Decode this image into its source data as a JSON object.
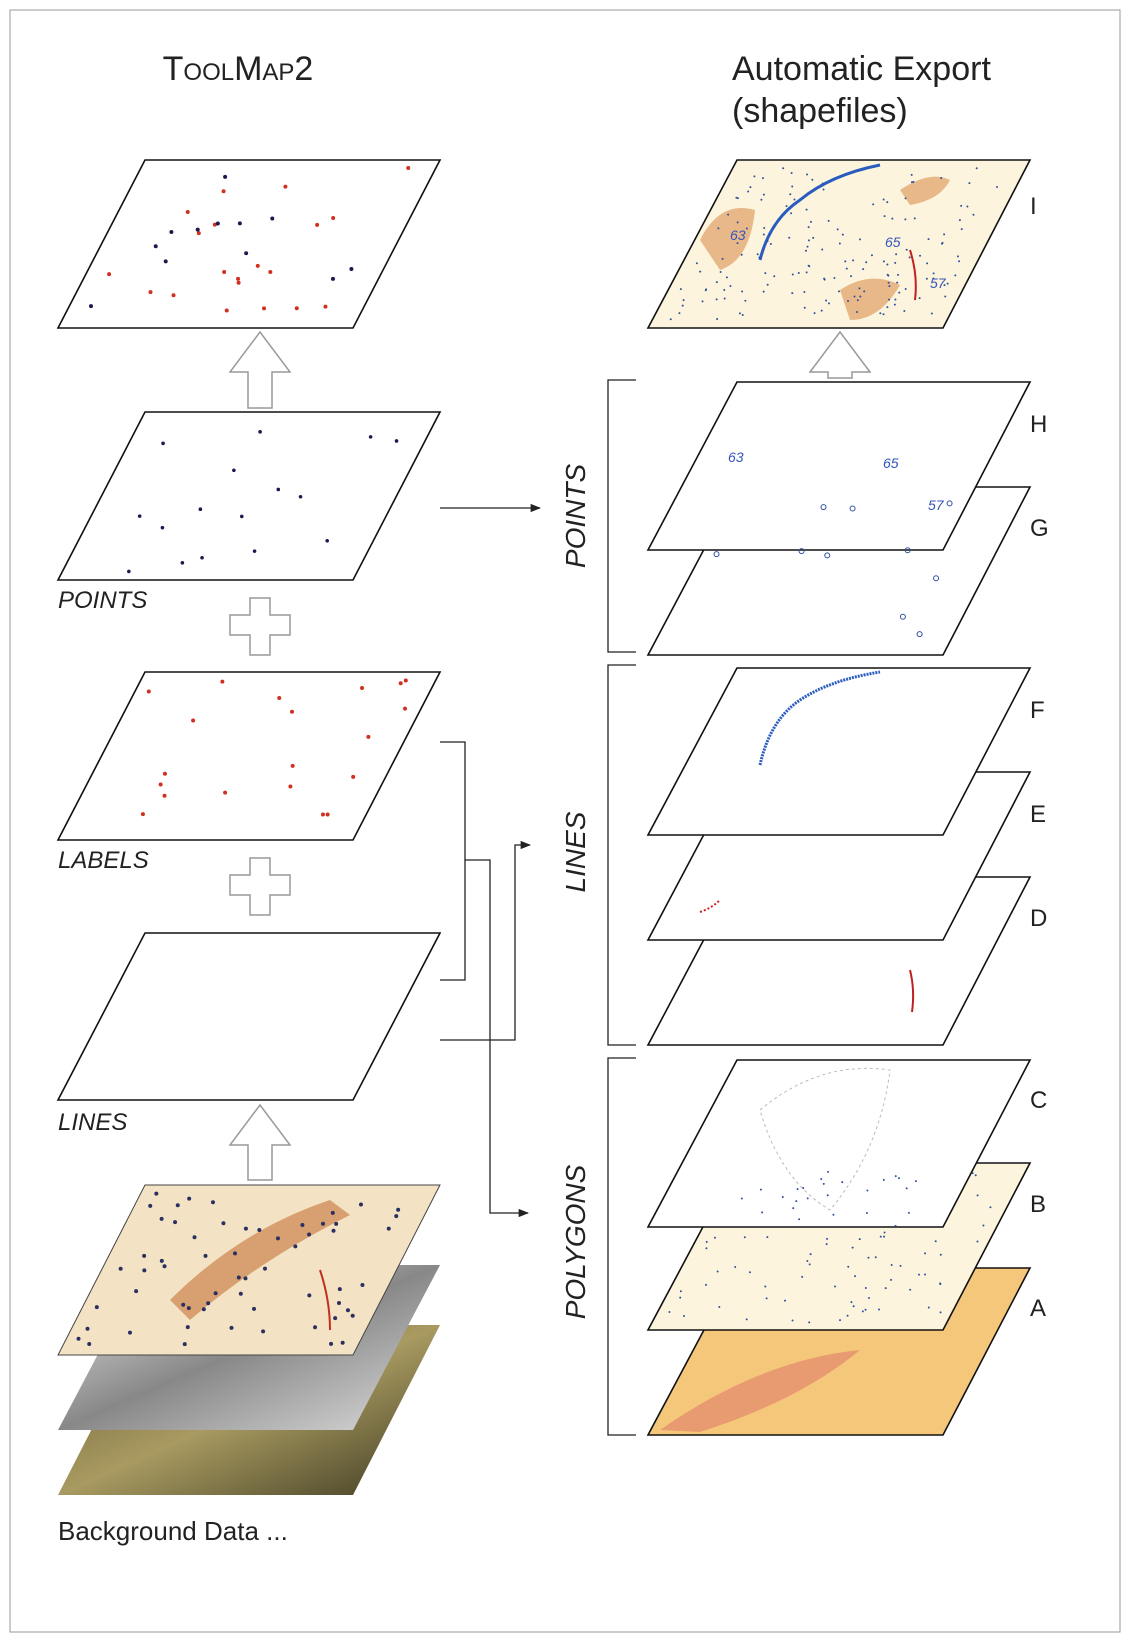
{
  "left": {
    "title": "ToolMap2",
    "layers": [
      {
        "label": "POINTS"
      },
      {
        "label": "LABELS"
      },
      {
        "label": "LINES"
      }
    ],
    "footer": "Background Data ..."
  },
  "right": {
    "title": [
      "Automatic Export",
      "(shapefiles)"
    ],
    "result": "I",
    "groups": [
      {
        "label": "POINTS",
        "layers": [
          "H",
          "G"
        ]
      },
      {
        "label": "LINES",
        "layers": [
          "F",
          "E",
          "D"
        ]
      },
      {
        "label": "POLYGONS",
        "layers": [
          "C",
          "B",
          "A"
        ]
      }
    ],
    "dip_labels": [
      "63",
      "65",
      "57"
    ]
  }
}
